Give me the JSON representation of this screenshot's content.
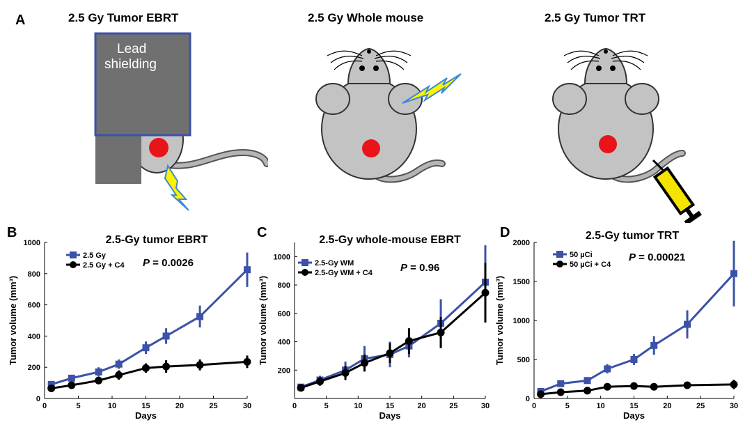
{
  "panel_a": {
    "letter": "A",
    "titles": [
      "2.5 Gy  Tumor EBRT",
      "2.5 Gy  Whole mouse",
      "2.5 Gy  Tumor TRT"
    ],
    "lead_label_1": "Lead",
    "lead_label_2": "shielding"
  },
  "colors": {
    "blue": "#3b52a8",
    "black": "#000000",
    "tumor": "#e8141a",
    "mouse_body": "#c3c3c3",
    "lead": "#707070",
    "bolt": "#fff200",
    "syringe": "#f5e400"
  },
  "chart_data": [
    {
      "type": "line",
      "letter": "B",
      "title": "2.5-Gy tumor EBRT",
      "xlabel": "Days",
      "ylabel": "Tumor volume (mm³)",
      "xlim": [
        0,
        30
      ],
      "ylim": [
        0,
        1000
      ],
      "xticks": [
        0,
        5,
        10,
        15,
        20,
        25,
        30
      ],
      "yticks": [
        0,
        200,
        400,
        600,
        800,
        1000
      ],
      "pvalue_prefix": "P",
      "pvalue": "= 0.0026",
      "legend": "top-left",
      "series": [
        {
          "name": "2.5 Gy",
          "color": "#3b52a8",
          "marker": "square",
          "x": [
            1,
            4,
            8,
            11,
            15,
            18,
            23,
            30
          ],
          "y": [
            90,
            130,
            170,
            220,
            325,
            400,
            525,
            825
          ],
          "err": [
            15,
            20,
            30,
            30,
            40,
            50,
            70,
            110
          ]
        },
        {
          "name": "2.5 Gy + C4",
          "color": "#000000",
          "marker": "circle",
          "x": [
            1,
            4,
            8,
            11,
            15,
            18,
            23,
            30
          ],
          "y": [
            65,
            85,
            115,
            150,
            195,
            205,
            215,
            235
          ],
          "err": [
            10,
            12,
            20,
            30,
            30,
            40,
            35,
            40
          ]
        }
      ]
    },
    {
      "type": "line",
      "letter": "C",
      "title": "2.5-Gy whole-mouse EBRT",
      "xlabel": "Days",
      "ylabel": "Tumor volume (mm³)",
      "xlim": [
        0,
        30
      ],
      "ylim": [
        0,
        1100
      ],
      "xticks": [
        0,
        5,
        10,
        15,
        20,
        25,
        30
      ],
      "yticks": [
        200,
        400,
        600,
        800,
        1000
      ],
      "pvalue_prefix": "P",
      "pvalue": "= 0.96",
      "legend": "top-left",
      "series": [
        {
          "name": "2.5-Gy WM",
          "color": "#3b52a8",
          "marker": "square",
          "x": [
            1,
            4,
            8,
            11,
            15,
            18,
            23,
            30
          ],
          "y": [
            80,
            130,
            200,
            280,
            310,
            370,
            530,
            820
          ],
          "err": [
            20,
            30,
            60,
            90,
            90,
            80,
            170,
            260
          ]
        },
        {
          "name": "2.5-Gy WM + C4",
          "color": "#000000",
          "marker": "circle",
          "x": [
            1,
            4,
            8,
            11,
            15,
            18,
            23,
            30
          ],
          "y": [
            75,
            120,
            180,
            250,
            320,
            405,
            465,
            745
          ],
          "err": [
            20,
            30,
            50,
            60,
            70,
            90,
            110,
            210
          ]
        }
      ]
    },
    {
      "type": "line",
      "letter": "D",
      "title": "2.5-Gy tumor TRT",
      "xlabel": "Days",
      "ylabel": "Tumor volume (mm³)",
      "xlim": [
        0,
        30
      ],
      "ylim": [
        0,
        2000
      ],
      "xticks": [
        0,
        5,
        10,
        15,
        20,
        25,
        30
      ],
      "yticks": [
        0,
        500,
        1000,
        1500,
        2000
      ],
      "pvalue_prefix": "P",
      "pvalue": "= 0.00021",
      "legend": "top-left",
      "series": [
        {
          "name": "50 µCi",
          "color": "#3b52a8",
          "marker": "square",
          "x": [
            1,
            4,
            8,
            11,
            15,
            18,
            23,
            30
          ],
          "y": [
            90,
            190,
            230,
            380,
            500,
            680,
            950,
            1600
          ],
          "err": [
            20,
            30,
            40,
            60,
            70,
            120,
            180,
            420
          ]
        },
        {
          "name": "50 µCi + C4",
          "color": "#000000",
          "marker": "circle",
          "x": [
            1,
            4,
            8,
            11,
            15,
            18,
            23,
            30
          ],
          "y": [
            55,
            80,
            100,
            150,
            160,
            150,
            170,
            180
          ],
          "err": [
            10,
            10,
            15,
            20,
            25,
            20,
            35,
            60
          ]
        }
      ]
    }
  ]
}
